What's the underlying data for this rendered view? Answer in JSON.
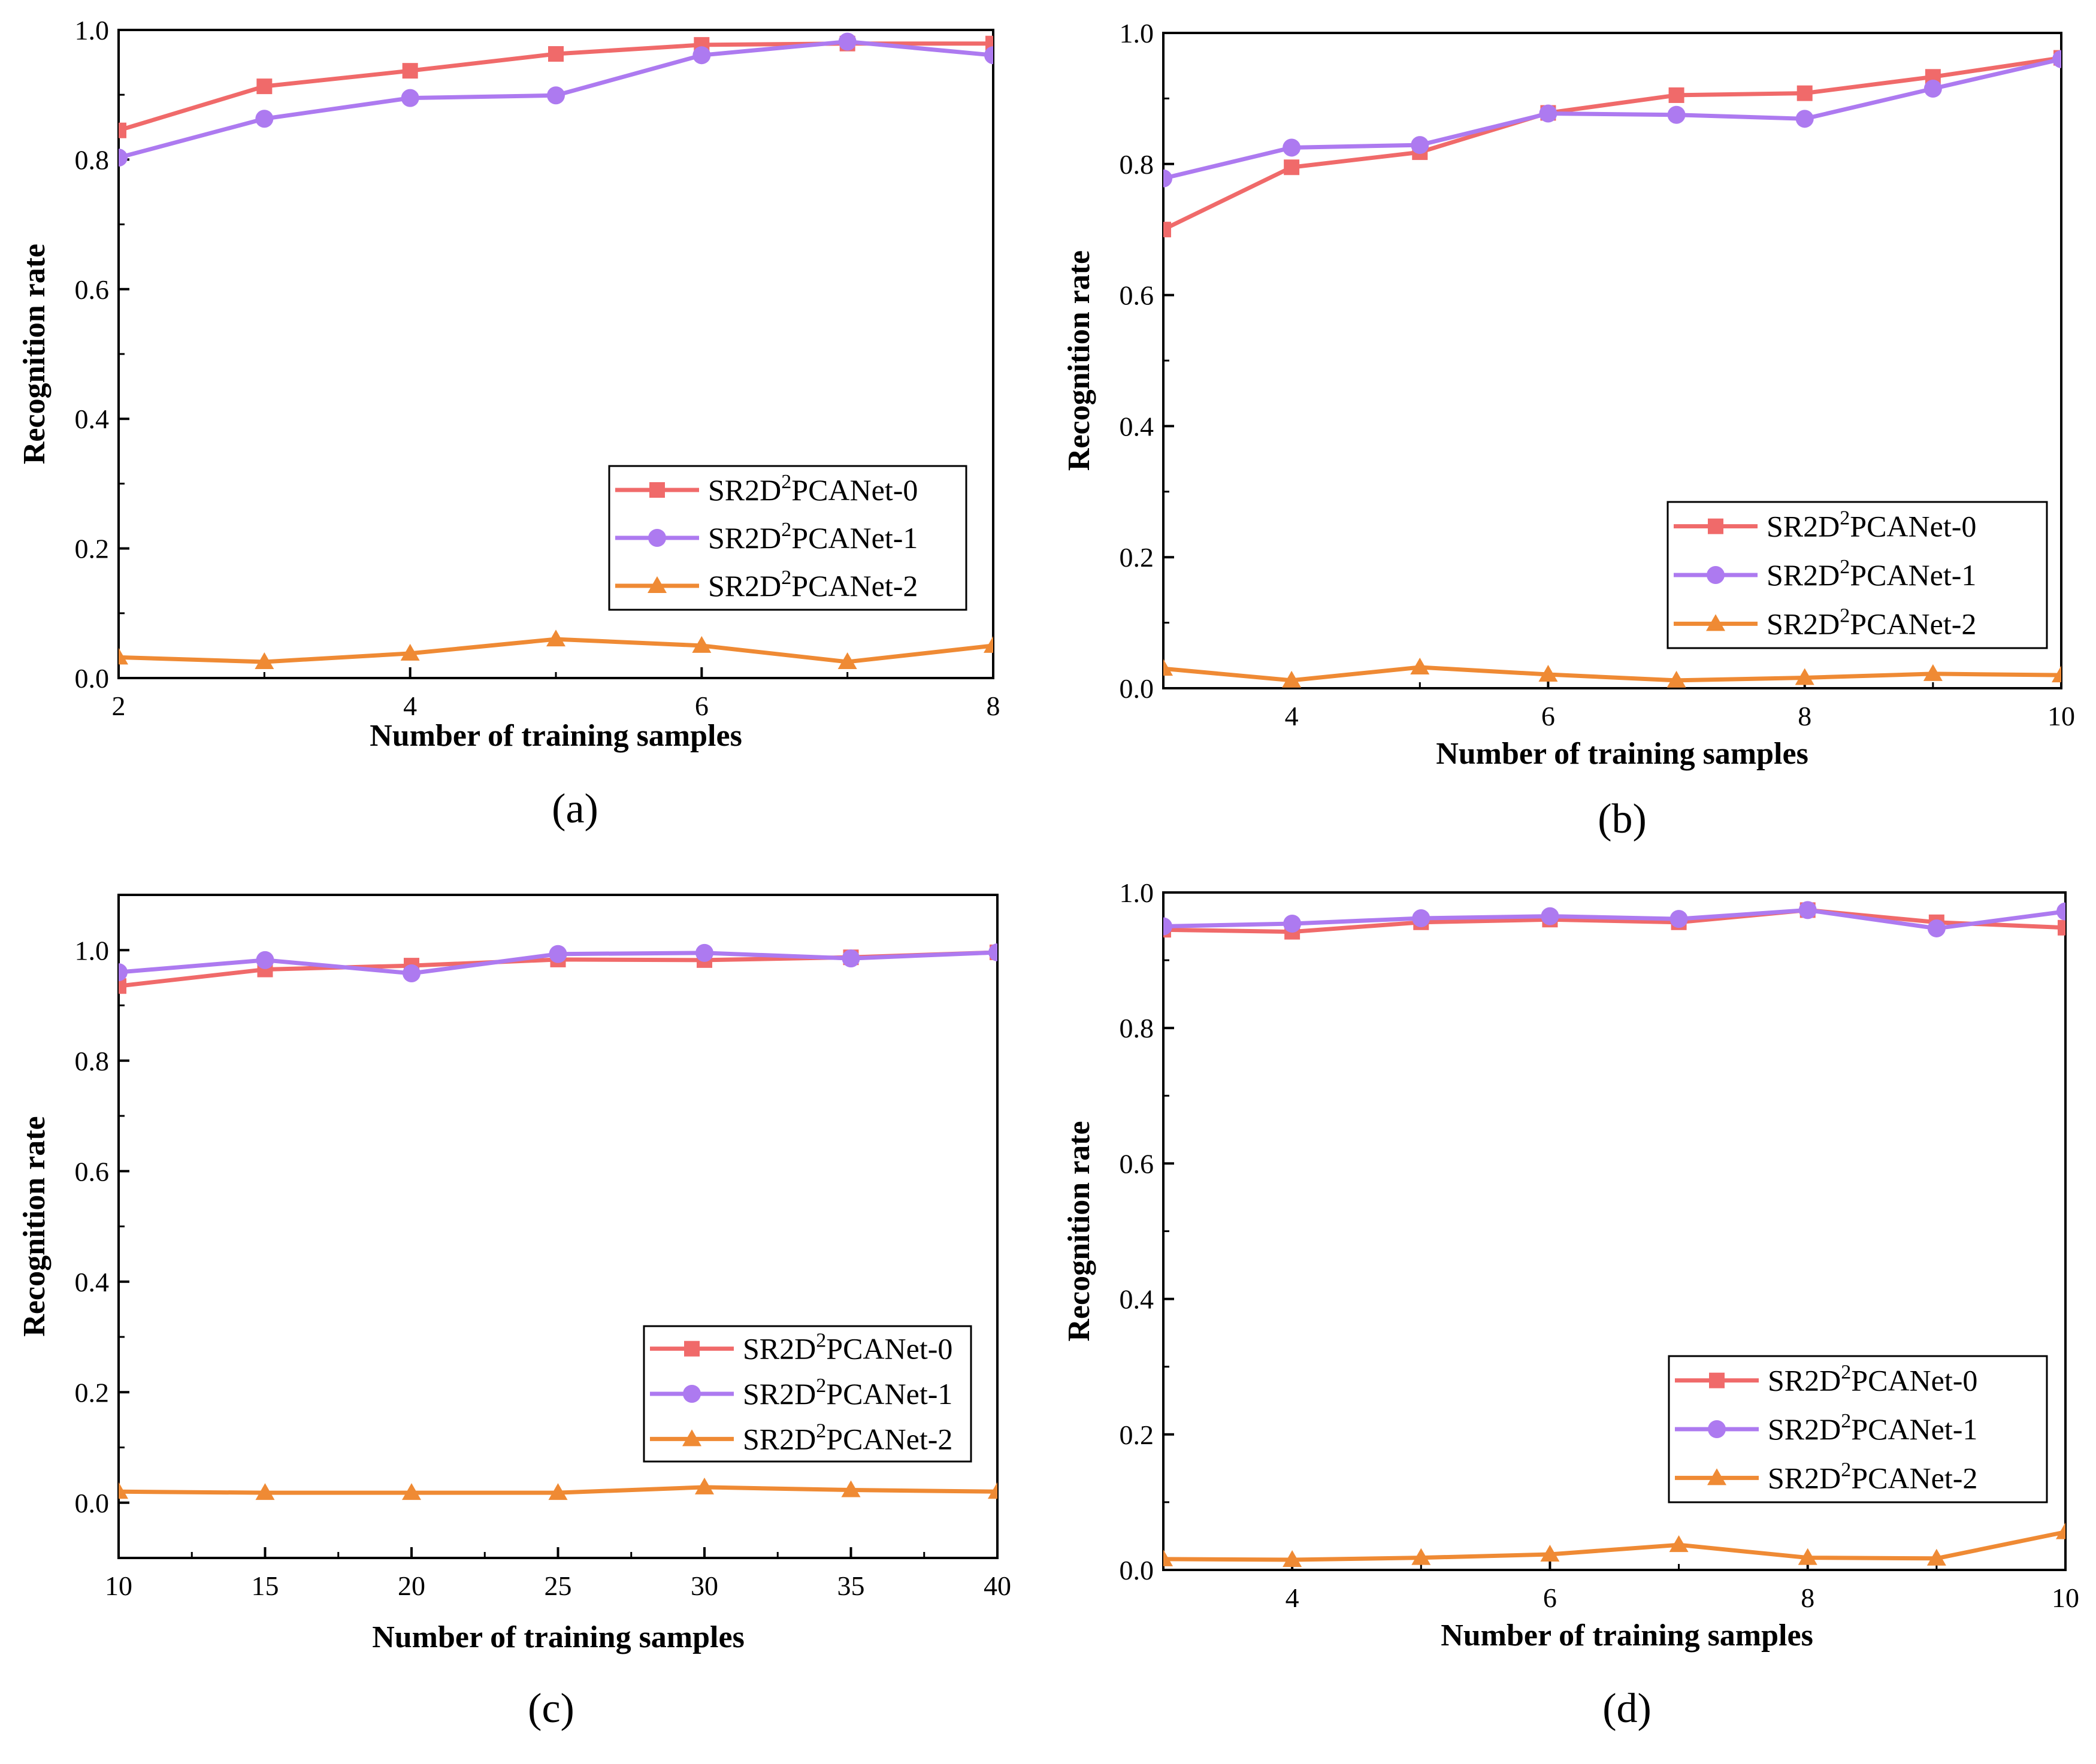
{
  "series_colors": [
    "#f06a6a",
    "#ad7af0",
    "#ef8a34"
  ],
  "chart_data": [
    {
      "type": "line",
      "caption": "(a)",
      "xlabel": "Number of  training samples",
      "ylabel": "Recognition rate",
      "xlim": [
        2,
        8
      ],
      "ylim": [
        0,
        1
      ],
      "xticks": [
        2,
        4,
        6,
        8
      ],
      "yticks": [
        0,
        0.2,
        0.4,
        0.6,
        0.8,
        1.0
      ],
      "legend": "lower-right",
      "x": [
        2,
        3,
        4,
        5,
        6,
        7,
        8
      ],
      "series": [
        {
          "name_main": "SR2D",
          "name_sup": "2",
          "name_tail": "PCANet-0",
          "marker": "square",
          "values": [
            0.845,
            0.913,
            0.937,
            0.963,
            0.977,
            0.979,
            0.979
          ]
        },
        {
          "name_main": "SR2D",
          "name_sup": "2",
          "name_tail": "PCANet-1",
          "marker": "circle",
          "values": [
            0.803,
            0.863,
            0.895,
            0.899,
            0.961,
            0.982,
            0.961
          ]
        },
        {
          "name_main": "SR2D",
          "name_sup": "2",
          "name_tail": "PCANet-2",
          "marker": "triangle",
          "values": [
            0.032,
            0.025,
            0.038,
            0.06,
            0.05,
            0.025,
            0.05
          ]
        }
      ]
    },
    {
      "type": "line",
      "caption": "(b)",
      "xlabel": "Number of training samples",
      "ylabel": "Recognition rate",
      "xlim": [
        3,
        10
      ],
      "ylim": [
        0,
        1
      ],
      "xticks": [
        4,
        6,
        8,
        10
      ],
      "yticks": [
        0,
        0.2,
        0.4,
        0.6,
        0.8,
        1.0
      ],
      "legend": "lower-right",
      "x": [
        3,
        4,
        5,
        6,
        7,
        8,
        9,
        10
      ],
      "series": [
        {
          "name_main": "SR2D",
          "name_sup": "2",
          "name_tail": "PCANet-0",
          "marker": "square",
          "values": [
            0.7,
            0.795,
            0.818,
            0.878,
            0.905,
            0.908,
            0.933,
            0.962
          ]
        },
        {
          "name_main": "SR2D",
          "name_sup": "2",
          "name_tail": "PCANet-1",
          "marker": "circle",
          "values": [
            0.778,
            0.825,
            0.829,
            0.877,
            0.875,
            0.869,
            0.915,
            0.96
          ]
        },
        {
          "name_main": "SR2D",
          "name_sup": "2",
          "name_tail": "PCANet-2",
          "marker": "triangle",
          "values": [
            0.03,
            0.012,
            0.032,
            0.021,
            0.012,
            0.016,
            0.022,
            0.02
          ]
        }
      ]
    },
    {
      "type": "line",
      "caption": "(c)",
      "xlabel": "Number of training samples",
      "ylabel": "Recognition rate",
      "xlim": [
        10,
        40
      ],
      "ylim": [
        -0.1,
        1.1
      ],
      "xticks": [
        10,
        15,
        20,
        25,
        30,
        35,
        40
      ],
      "yticks": [
        0,
        0.2,
        0.4,
        0.6,
        0.8,
        1.0
      ],
      "legend": "lower-right",
      "x": [
        10,
        15,
        20,
        25,
        30,
        35,
        40
      ],
      "series": [
        {
          "name_main": "SR2D",
          "name_sup": "2",
          "name_tail": "PCANet-0",
          "marker": "square",
          "values": [
            0.935,
            0.965,
            0.972,
            0.983,
            0.982,
            0.987,
            0.996
          ]
        },
        {
          "name_main": "SR2D",
          "name_sup": "2",
          "name_tail": "PCANet-1",
          "marker": "circle",
          "values": [
            0.96,
            0.982,
            0.958,
            0.993,
            0.995,
            0.985,
            0.996
          ]
        },
        {
          "name_main": "SR2D",
          "name_sup": "2",
          "name_tail": "PCANet-2",
          "marker": "triangle",
          "values": [
            0.02,
            0.018,
            0.018,
            0.018,
            0.028,
            0.023,
            0.02
          ]
        }
      ]
    },
    {
      "type": "line",
      "caption": "(d)",
      "xlabel": "Number of training samples",
      "ylabel": "Recognition rate",
      "xlim": [
        3,
        10
      ],
      "ylim": [
        0,
        1
      ],
      "xticks": [
        4,
        6,
        8,
        10
      ],
      "yticks": [
        0,
        0.2,
        0.4,
        0.6,
        0.8,
        1.0
      ],
      "legend": "lower-right",
      "x": [
        3,
        4,
        5,
        6,
        7,
        8,
        9,
        10
      ],
      "series": [
        {
          "name_main": "SR2D",
          "name_sup": "2",
          "name_tail": "PCANet-0",
          "marker": "square",
          "values": [
            0.945,
            0.942,
            0.956,
            0.96,
            0.956,
            0.974,
            0.956,
            0.948
          ]
        },
        {
          "name_main": "SR2D",
          "name_sup": "2",
          "name_tail": "PCANet-1",
          "marker": "circle",
          "values": [
            0.95,
            0.954,
            0.962,
            0.965,
            0.961,
            0.974,
            0.947,
            0.972
          ]
        },
        {
          "name_main": "SR2D",
          "name_sup": "2",
          "name_tail": "PCANet-2",
          "marker": "triangle",
          "values": [
            0.016,
            0.015,
            0.018,
            0.023,
            0.037,
            0.018,
            0.017,
            0.056
          ]
        }
      ]
    }
  ]
}
